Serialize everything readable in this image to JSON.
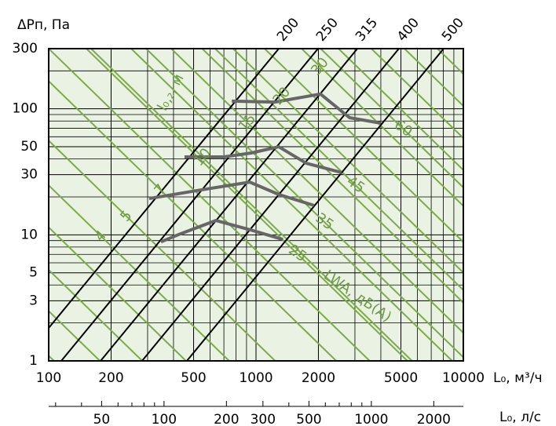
{
  "chart_data": {
    "type": "line",
    "y_label": "ΔPп, Па",
    "x_label": "L₀, м³/ч",
    "x2_label": "L₀, л/с",
    "log_x": true,
    "log_y": true,
    "xlim": [
      100,
      10000
    ],
    "ylim": [
      1,
      300
    ],
    "xticks": [
      100,
      200,
      500,
      1000,
      2000,
      5000,
      10000
    ],
    "yticks": [
      1,
      3,
      5,
      10,
      30,
      50,
      100,
      300
    ],
    "x_minor_grid": [
      300,
      400,
      600,
      700,
      800,
      900,
      3000,
      4000,
      6000,
      7000,
      8000,
      9000
    ],
    "y_minor_grid": [
      2,
      4,
      6,
      7,
      8,
      9,
      20,
      40,
      60,
      70,
      80,
      90,
      200
    ],
    "x2lim": [
      27.78,
      2777.78
    ],
    "x2ticks": [
      50,
      100,
      200,
      300,
      500,
      1000,
      2000
    ],
    "x2_minor_ticks": [
      30,
      40,
      60,
      70,
      80,
      90,
      400,
      600,
      700,
      800,
      900
    ],
    "background": "#e9f2e3",
    "grid_color": "#000000",
    "ducts": [
      {
        "name": "200",
        "x": [
          74,
          1288
        ],
        "y": [
          1,
          300
        ]
      },
      {
        "name": "250",
        "x": [
          115,
          1991
        ],
        "y": [
          1,
          300
        ]
      },
      {
        "name": "315",
        "x": [
          178,
          3083
        ],
        "y": [
          1,
          300
        ]
      },
      {
        "name": "400",
        "x": [
          282,
          4888
        ],
        "y": [
          1,
          300
        ]
      },
      {
        "name": "500",
        "x": [
          464,
          8036
        ],
        "y": [
          1,
          300
        ]
      }
    ],
    "duct_color": "#000000",
    "throw_lines": {
      "name": "l₀,₂, м",
      "color": "#7dab4a",
      "slope": -1.6,
      "x_at_top": [
        3,
        5,
        8,
        13,
        21,
        35,
        69,
        100,
        160,
        250,
        390,
        550,
        775,
        1100,
        1660,
        2500,
        3600,
        5200,
        7500
      ],
      "labels": [
        null,
        null,
        null,
        null,
        "4",
        "5",
        "7",
        null,
        "10",
        null,
        "15",
        null,
        "20",
        null,
        "30",
        null,
        null,
        null,
        null
      ]
    },
    "sound_lines": {
      "name": "LWA, дБ(A)",
      "color": "#7dab4a",
      "slope": -1.6,
      "x_at_top": [
        152,
        295,
        635,
        2050
      ],
      "labels": [
        "25",
        "35",
        "45",
        "60"
      ]
    },
    "curve_color": "#666666",
    "fan_curves": [
      {
        "x": [
          348,
          433,
          641,
          949,
          1346
        ],
        "y": [
          8.8,
          10.2,
          13.0,
          10.9,
          9.2
        ]
      },
      {
        "x": [
          305,
          515,
          933,
          1288,
          1906
        ],
        "y": [
          19.4,
          22.4,
          26.2,
          20.9,
          17.1
        ]
      },
      {
        "x": [
          452,
          700,
          949,
          1288,
          1746,
          2588
        ],
        "y": [
          41.5,
          41.5,
          44.6,
          50,
          37.0,
          31.2
        ]
      },
      {
        "x": [
          764,
          1233,
          2046,
          2826,
          4000
        ],
        "y": [
          115,
          113,
          131,
          85,
          76.9
        ]
      }
    ]
  }
}
